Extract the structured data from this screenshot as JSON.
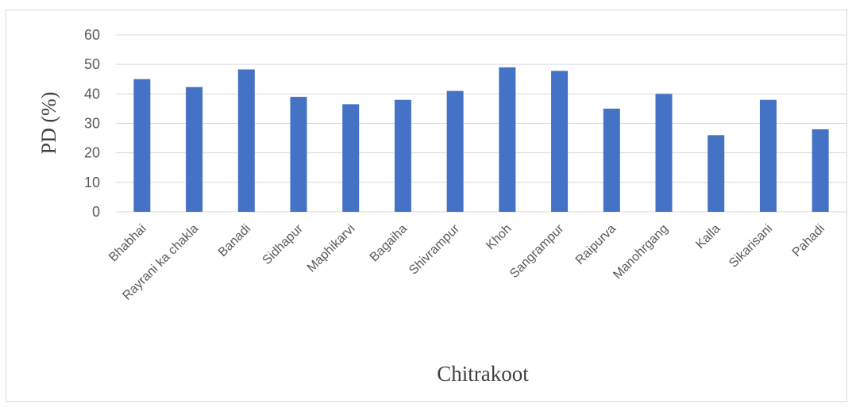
{
  "chart_data": {
    "type": "bar",
    "xlabel": "Chitrakoot",
    "ylabel": "PD (%)",
    "ylim": [
      0,
      60
    ],
    "yticks": [
      0,
      10,
      20,
      30,
      40,
      50,
      60
    ],
    "grid": true,
    "bar_color": "#4472C4",
    "categories": [
      "Bhabhai",
      "Rayrani ka chakla",
      "Banadi",
      "Sidhapur",
      "Maphikarvi",
      "Bagaiha",
      "Shivrampur",
      "Khoh",
      "Sangrampur",
      "Raipurva",
      "Manohrgang",
      "Kalla",
      "Sikarisani",
      "Pahadi"
    ],
    "values": [
      45,
      42.3,
      48.3,
      39,
      36.5,
      38,
      41,
      49,
      47.8,
      35,
      40,
      26,
      38,
      28
    ]
  }
}
